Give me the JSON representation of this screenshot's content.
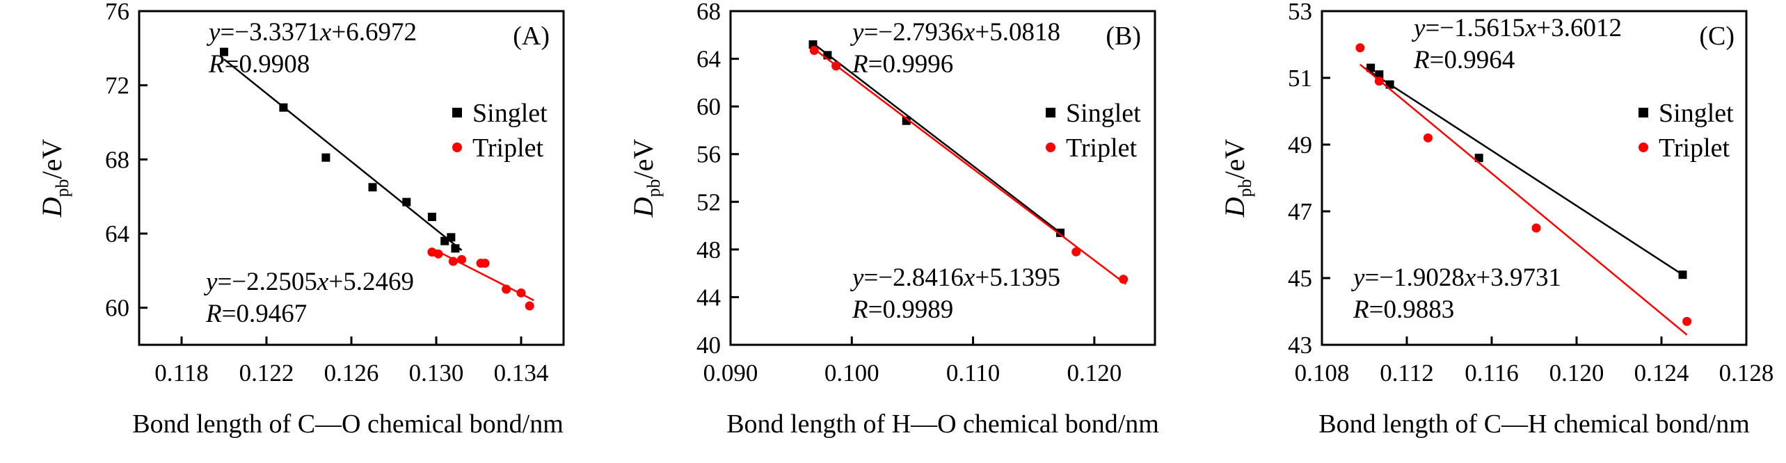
{
  "chart_data": [
    {
      "type": "scatter",
      "panel_label": "(A)",
      "xlabel": "Bond length of C—O chemical bond/nm",
      "ylabel": "D",
      "ylabel_subscript": "pb",
      "ylabel_unit": "/eV",
      "xlim": [
        0.116,
        0.136
      ],
      "ylim": [
        58,
        76
      ],
      "xticks": [
        "0.118",
        "0.122",
        "0.126",
        "0.130",
        "0.134"
      ],
      "xtick_values": [
        0.118,
        0.122,
        0.126,
        0.13,
        0.134
      ],
      "yticks": [
        "60",
        "64",
        "68",
        "72",
        "76"
      ],
      "ytick_values": [
        60,
        64,
        68,
        72,
        76
      ],
      "legend_position": "right",
      "series": [
        {
          "name": "Singlet",
          "marker": "square",
          "color": "#000000",
          "points": [
            [
              0.12,
              73.8
            ],
            [
              0.1228,
              70.8
            ],
            [
              0.1248,
              68.1
            ],
            [
              0.127,
              66.5
            ],
            [
              0.1286,
              65.7
            ],
            [
              0.1298,
              64.9
            ],
            [
              0.1304,
              63.6
            ],
            [
              0.1307,
              63.8
            ],
            [
              0.1309,
              63.2
            ]
          ],
          "fit": {
            "equation_lhs": "y",
            "equation_rhs": "=−3.3371",
            "equation_var": "x",
            "equation_const": "+6.6972",
            "r_label": "R",
            "r_value": "=0.9908",
            "x_range": [
              0.12,
              0.1312
            ],
            "y_range": [
              73.4,
              63.1
            ]
          }
        },
        {
          "name": "Triplet",
          "marker": "circle",
          "color": "#ff0000",
          "points": [
            [
              0.1298,
              63.0
            ],
            [
              0.1301,
              62.9
            ],
            [
              0.1308,
              62.5
            ],
            [
              0.1312,
              62.6
            ],
            [
              0.1321,
              62.4
            ],
            [
              0.1323,
              62.4
            ],
            [
              0.1333,
              61.0
            ],
            [
              0.134,
              60.8
            ],
            [
              0.1344,
              60.1
            ]
          ],
          "fit": {
            "equation_lhs": "y",
            "equation_rhs": "=−2.2505",
            "equation_var": "x",
            "equation_const": "+5.2469",
            "r_label": "R",
            "r_value": "=0.9467",
            "x_range": [
              0.1298,
              0.1346
            ],
            "y_range": [
              63.2,
              60.4
            ]
          }
        }
      ]
    },
    {
      "type": "scatter",
      "panel_label": "(B)",
      "xlabel": "Bond length of H—O chemical bond/nm",
      "ylabel": "D",
      "ylabel_subscript": "pb",
      "ylabel_unit": "/eV",
      "xlim": [
        0.09,
        0.125
      ],
      "ylim": [
        40,
        68
      ],
      "xticks": [
        "0.090",
        "0.100",
        "0.110",
        "0.120"
      ],
      "xtick_values": [
        0.09,
        0.1,
        0.11,
        0.12
      ],
      "yticks": [
        "40",
        "44",
        "48",
        "52",
        "56",
        "60",
        "64",
        "68"
      ],
      "ytick_values": [
        40,
        44,
        48,
        52,
        56,
        60,
        64,
        68
      ],
      "legend_position": "right",
      "series": [
        {
          "name": "Singlet",
          "marker": "square",
          "color": "#000000",
          "points": [
            [
              0.0968,
              65.2
            ],
            [
              0.098,
              64.3
            ],
            [
              0.1045,
              58.8
            ],
            [
              0.1172,
              49.4
            ]
          ],
          "fit": {
            "equation_lhs": "y",
            "equation_rhs": "=−2.7936",
            "equation_var": "x",
            "equation_const": "+5.0818",
            "r_label": "R",
            "r_value": "=0.9996",
            "x_range": [
              0.0968,
              0.1172
            ],
            "y_range": [
              65.3,
              49.4
            ]
          }
        },
        {
          "name": "Triplet",
          "marker": "circle",
          "color": "#ff0000",
          "points": [
            [
              0.0969,
              64.7
            ],
            [
              0.0987,
              63.4
            ],
            [
              0.1185,
              47.8
            ],
            [
              0.1224,
              45.5
            ]
          ],
          "fit": {
            "equation_lhs": "y",
            "equation_rhs": "=−2.8416",
            "equation_var": "x",
            "equation_const": "+5.1395",
            "r_label": "R",
            "r_value": "=0.9989",
            "x_range": [
              0.0968,
              0.1226
            ],
            "y_range": [
              64.9,
              45.1
            ]
          }
        }
      ]
    },
    {
      "type": "scatter",
      "panel_label": "(C)",
      "xlabel": "Bond length of C—H chemical bond/nm",
      "ylabel": "D",
      "ylabel_subscript": "pb",
      "ylabel_unit": "/eV",
      "xlim": [
        0.108,
        0.128
      ],
      "ylim": [
        43,
        53
      ],
      "xticks": [
        "0.108",
        "0.112",
        "0.116",
        "0.120",
        "0.124",
        "0.128"
      ],
      "xtick_values": [
        0.108,
        0.112,
        0.116,
        0.12,
        0.124,
        0.128
      ],
      "yticks": [
        "43",
        "45",
        "47",
        "49",
        "51",
        "53"
      ],
      "ytick_values": [
        43,
        45,
        47,
        49,
        51,
        53
      ],
      "legend_position": "right",
      "series": [
        {
          "name": "Singlet",
          "marker": "square",
          "color": "#000000",
          "points": [
            [
              0.1103,
              51.3
            ],
            [
              0.1107,
              51.1
            ],
            [
              0.1112,
              50.8
            ],
            [
              0.1154,
              48.6
            ],
            [
              0.125,
              45.1
            ]
          ],
          "fit": {
            "equation_lhs": "y",
            "equation_rhs": "=−1.5615",
            "equation_var": "x",
            "equation_const": "+3.6012",
            "r_label": "R",
            "r_value": "=0.9964",
            "x_range": [
              0.11,
              0.125
            ],
            "y_range": [
              51.3,
              45.1
            ]
          }
        },
        {
          "name": "Triplet",
          "marker": "circle",
          "color": "#ff0000",
          "points": [
            [
              0.1098,
              51.9
            ],
            [
              0.1107,
              50.9
            ],
            [
              0.113,
              49.2
            ],
            [
              0.1181,
              46.5
            ],
            [
              0.1252,
              43.7
            ]
          ],
          "fit": {
            "equation_lhs": "y",
            "equation_rhs": "=−1.9028",
            "equation_var": "x",
            "equation_const": "+3.9731",
            "r_label": "R",
            "r_value": "=0.9883",
            "x_range": [
              0.1098,
              0.1252
            ],
            "y_range": [
              51.4,
              43.3
            ]
          }
        }
      ]
    }
  ]
}
